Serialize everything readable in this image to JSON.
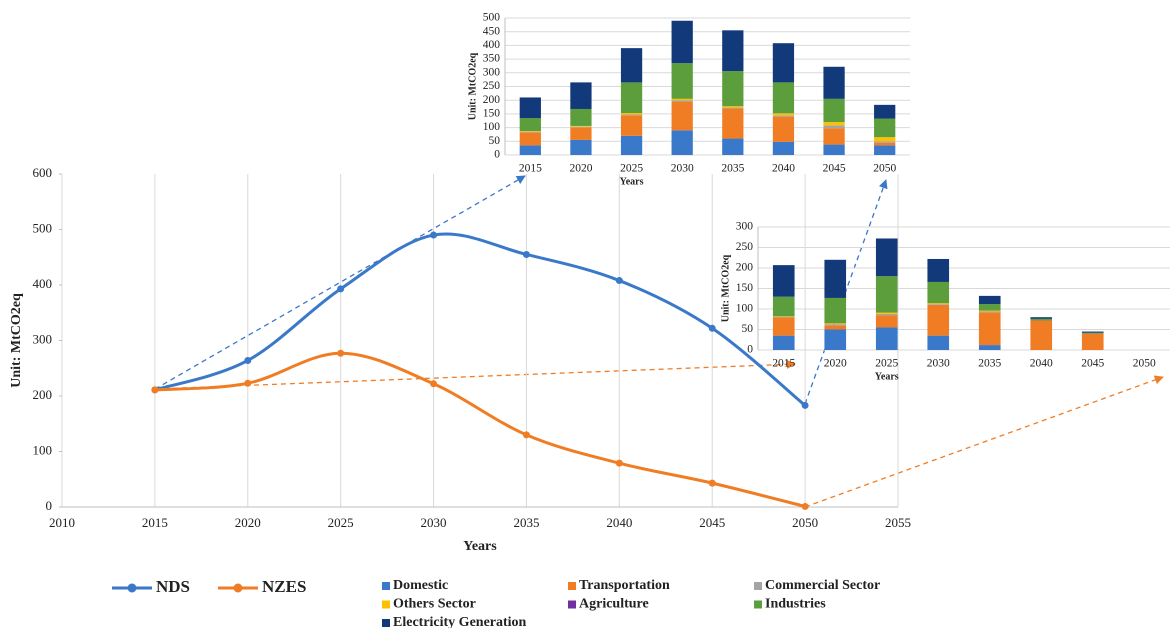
{
  "chart_data": [
    {
      "type": "line",
      "x_label": "Years",
      "y_label": "Unit: MtCO2eq",
      "x": [
        2015,
        2020,
        2025,
        2030,
        2035,
        2040,
        2045,
        2050
      ],
      "xlim": [
        2010,
        2055
      ],
      "xticks": [
        2010,
        2015,
        2020,
        2025,
        2030,
        2035,
        2040,
        2045,
        2050,
        2055
      ],
      "ylim": [
        0,
        600
      ],
      "yticks": [
        0,
        100,
        200,
        300,
        400,
        500,
        600
      ],
      "grid": true,
      "series": [
        {
          "name": "NDS",
          "color": "#3a78c9",
          "values": [
            211,
            264,
            393,
            490,
            455,
            408,
            322,
            183
          ]
        },
        {
          "name": "NZES",
          "color": "#f07d24",
          "values": [
            211,
            223,
            277,
            222,
            130,
            79,
            43,
            1
          ]
        }
      ]
    },
    {
      "type": "stacked_bar",
      "x_label": "Years",
      "y_label": "Unit: MtCO2eq",
      "categories": [
        "2015",
        "2020",
        "2025",
        "2030",
        "2035",
        "2040",
        "2045",
        "2050"
      ],
      "ylim": [
        0,
        500
      ],
      "yticks": [
        0,
        50,
        100,
        150,
        200,
        250,
        300,
        350,
        400,
        450,
        500
      ],
      "grid": true,
      "series": [
        {
          "name": "Domestic",
          "color": "#3a78c9",
          "values": [
            35,
            55,
            70,
            90,
            60,
            48,
            38,
            35
          ]
        },
        {
          "name": "Transportation",
          "color": "#f07d24",
          "values": [
            48,
            45,
            75,
            105,
            110,
            92,
            60,
            10
          ]
        },
        {
          "name": "Commercial Sector",
          "color": "#a5a5a5",
          "values": [
            2,
            3,
            3,
            5,
            3,
            5,
            10,
            5
          ]
        },
        {
          "name": "Others Sector",
          "color": "#ffc000",
          "values": [
            2,
            3,
            5,
            5,
            5,
            7,
            12,
            15
          ]
        },
        {
          "name": "Agriculture",
          "color": "#7030a0",
          "values": [
            0,
            0,
            0,
            0,
            0,
            0,
            0,
            0
          ]
        },
        {
          "name": "Industries",
          "color": "#5d9e3c",
          "values": [
            48,
            62,
            112,
            130,
            128,
            113,
            85,
            68
          ]
        },
        {
          "name": "Electricity Generation",
          "color": "#12397a",
          "values": [
            75,
            97,
            125,
            155,
            149,
            143,
            117,
            50
          ]
        }
      ]
    },
    {
      "type": "stacked_bar",
      "x_label": "Years",
      "y_label": "Unit: MtCO2eq",
      "categories": [
        "2015",
        "2020",
        "2025",
        "2030",
        "2035",
        "2040",
        "2045",
        "2050"
      ],
      "ylim": [
        0,
        300
      ],
      "yticks": [
        0,
        50,
        100,
        150,
        200,
        250,
        300
      ],
      "grid": true,
      "series": [
        {
          "color": "#3a78c9",
          "values": [
            35,
            50,
            55,
            35,
            12,
            0,
            0,
            0
          ]
        },
        {
          "color": "#f07d24",
          "values": [
            45,
            10,
            30,
            75,
            80,
            72,
            40,
            0
          ]
        },
        {
          "color": "#a5a5a5",
          "values": [
            1,
            3,
            3,
            2,
            2,
            0,
            0,
            0
          ]
        },
        {
          "color": "#ffc000",
          "values": [
            1,
            2,
            3,
            2,
            2,
            0,
            0,
            0
          ]
        },
        {
          "color": "#7030a0",
          "values": [
            0,
            0,
            0,
            0,
            0,
            0,
            0,
            0
          ]
        },
        {
          "color": "#5d9e3c",
          "values": [
            48,
            62,
            89,
            52,
            16,
            4,
            2,
            0
          ]
        },
        {
          "color": "#12397a",
          "values": [
            77,
            93,
            92,
            56,
            20,
            4,
            3,
            0
          ]
        }
      ]
    }
  ]
}
